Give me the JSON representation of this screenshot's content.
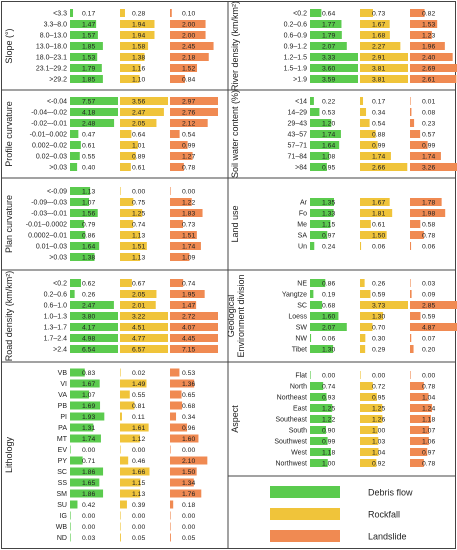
{
  "chart_data": {
    "type": "bar",
    "value_max": 2.7,
    "colors": {
      "debris": "#5bcb4e",
      "rockfall": "#f0c43a",
      "landslide": "#f08a52"
    },
    "legend": [
      {
        "key": "debris",
        "label": "Debris flow"
      },
      {
        "key": "rockfall",
        "label": "Rockfall"
      },
      {
        "key": "landslide",
        "label": "Landslide"
      }
    ],
    "panels": [
      {
        "title": "Slope (°)",
        "rows": [
          {
            "label": "<3.3",
            "values": [
              0.17,
              0.28,
              0.1
            ]
          },
          {
            "label": "3.3–8.0",
            "values": [
              1.47,
              1.94,
              2.0
            ]
          },
          {
            "label": "8.0–13.0",
            "values": [
              1.57,
              1.94,
              2.0
            ]
          },
          {
            "label": "13.0–18.0",
            "values": [
              1.85,
              1.58,
              2.45
            ]
          },
          {
            "label": "18.0–23.1",
            "values": [
              1.53,
              1.38,
              2.18
            ]
          },
          {
            "label": "23.1–29.2",
            "values": [
              1.79,
              1.16,
              1.52
            ]
          },
          {
            "label": ">29.2",
            "values": [
              1.85,
              1.1,
              0.84
            ]
          }
        ]
      },
      {
        "title": "River density (km/km²)",
        "rows": [
          {
            "label": "<0.2",
            "values": [
              0.64,
              0.73,
              0.82
            ]
          },
          {
            "label": "0.2–0.6",
            "values": [
              1.77,
              1.67,
              1.53
            ]
          },
          {
            "label": "0.6–0.9",
            "values": [
              1.79,
              1.68,
              1.23
            ]
          },
          {
            "label": "0.9–1.2",
            "values": [
              2.07,
              2.27,
              1.96
            ]
          },
          {
            "label": "1.2–1.5",
            "values": [
              3.33,
              2.91,
              2.4
            ]
          },
          {
            "label": "1.5–1.9",
            "values": [
              3.6,
              3.81,
              2.69
            ]
          },
          {
            "label": ">1.9",
            "values": [
              3.59,
              3.81,
              2.61
            ]
          }
        ]
      },
      {
        "title": "Profile curvature",
        "rows": [
          {
            "label": "<-0.04",
            "values": [
              7.57,
              3.56,
              2.97
            ]
          },
          {
            "label": "-0.04–-0.02",
            "values": [
              4.18,
              2.47,
              2.76
            ]
          },
          {
            "label": "-0.02–-0.01",
            "values": [
              2.48,
              2.05,
              2.12
            ]
          },
          {
            "label": "-0.01–0.002",
            "values": [
              0.47,
              0.64,
              0.54
            ]
          },
          {
            "label": "0.002–0.02",
            "values": [
              0.61,
              1.01,
              0.99
            ]
          },
          {
            "label": "0.02–0.03",
            "values": [
              0.55,
              0.89,
              1.27
            ]
          },
          {
            "label": ">0.03",
            "values": [
              0.4,
              0.61,
              0.78
            ]
          }
        ]
      },
      {
        "title": "Soil water content (%)",
        "rows": [
          {
            "label": "<14",
            "values": [
              0.22,
              0.17,
              0.01
            ]
          },
          {
            "label": "14–29",
            "values": [
              0.53,
              0.34,
              0.08
            ]
          },
          {
            "label": "29–43",
            "values": [
              1.2,
              0.54,
              0.23
            ]
          },
          {
            "label": "43–57",
            "values": [
              1.74,
              0.88,
              0.57
            ]
          },
          {
            "label": "57–71",
            "values": [
              1.64,
              0.99,
              0.99
            ]
          },
          {
            "label": "71–84",
            "values": [
              1.08,
              1.74,
              1.74
            ]
          },
          {
            "label": ">84",
            "values": [
              0.95,
              2.66,
              3.26
            ]
          }
        ]
      },
      {
        "title": "Plan curvature",
        "rows": [
          {
            "label": "<-0.09",
            "values": [
              1.13,
              0.0,
              0.0
            ]
          },
          {
            "label": "-0.09–-0.03",
            "values": [
              1.07,
              0.75,
              1.22
            ]
          },
          {
            "label": "-0.03–-0.01",
            "values": [
              1.56,
              1.25,
              1.83
            ]
          },
          {
            "label": "-0.01–0.0002",
            "values": [
              0.79,
              0.74,
              0.73
            ]
          },
          {
            "label": "0.0002–0.01",
            "values": [
              0.86,
              1.13,
              1.51
            ]
          },
          {
            "label": "0.01–0.03",
            "values": [
              1.64,
              1.51,
              1.74
            ]
          },
          {
            "label": ">0.03",
            "values": [
              1.38,
              1.13,
              1.09
            ]
          }
        ]
      },
      {
        "title": "Land use",
        "rows": [
          {
            "label": "Ar",
            "values": [
              1.35,
              1.67,
              1.78
            ]
          },
          {
            "label": "Fo",
            "values": [
              1.33,
              1.81,
              1.98
            ]
          },
          {
            "label": "Me",
            "values": [
              1.15,
              0.61,
              0.58
            ]
          },
          {
            "label": "SA",
            "values": [
              0.97,
              1.5,
              0.78
            ]
          },
          {
            "label": "Un",
            "values": [
              0.24,
              0.06,
              0.06
            ]
          }
        ]
      },
      {
        "title": "Road density (km/km²)",
        "rows": [
          {
            "label": "<0.2",
            "values": [
              0.62,
              0.67,
              0.74
            ]
          },
          {
            "label": "0.2–0.6",
            "values": [
              0.26,
              2.05,
              1.95
            ]
          },
          {
            "label": "0.6–1.0",
            "values": [
              2.47,
              2.01,
              1.47
            ]
          },
          {
            "label": "1.0–1.3",
            "values": [
              3.8,
              3.22,
              2.72
            ]
          },
          {
            "label": "1.3–1.7",
            "values": [
              4.17,
              4.51,
              4.07
            ]
          },
          {
            "label": "1.7–2.4",
            "values": [
              4.98,
              4.77,
              4.45
            ]
          },
          {
            "label": ">2.4",
            "values": [
              6.54,
              6.57,
              7.15
            ]
          }
        ]
      },
      {
        "title": "Geological Environment division",
        "rows": [
          {
            "label": "NE",
            "values": [
              0.86,
              0.26,
              0.03
            ]
          },
          {
            "label": "Yangtze",
            "values": [
              0.19,
              0.59,
              0.09
            ]
          },
          {
            "label": "SC",
            "values": [
              0.68,
              3.73,
              2.85
            ]
          },
          {
            "label": "Loess",
            "values": [
              1.6,
              1.3,
              0.59
            ]
          },
          {
            "label": "SW",
            "values": [
              2.07,
              0.7,
              4.87
            ]
          },
          {
            "label": "NW",
            "values": [
              0.06,
              0.3,
              0.07
            ]
          },
          {
            "label": "Tibet",
            "values": [
              1.3,
              0.29,
              0.2
            ]
          }
        ]
      },
      {
        "title": "Lithology",
        "rows": [
          {
            "label": "VB",
            "values": [
              0.83,
              0.02,
              0.53
            ]
          },
          {
            "label": "VI",
            "values": [
              1.67,
              1.49,
              1.36
            ]
          },
          {
            "label": "VA",
            "values": [
              1.07,
              0.55,
              0.65
            ]
          },
          {
            "label": "PB",
            "values": [
              1.69,
              0.81,
              0.68
            ]
          },
          {
            "label": "PI",
            "values": [
              1.93,
              0.11,
              0.34
            ]
          },
          {
            "label": "PA",
            "values": [
              1.31,
              1.61,
              0.96
            ]
          },
          {
            "label": "MT",
            "values": [
              1.74,
              1.12,
              1.6
            ]
          },
          {
            "label": "EV",
            "values": [
              0.0,
              0.0,
              0.0
            ]
          },
          {
            "label": "PY",
            "values": [
              0.71,
              0.46,
              2.1
            ]
          },
          {
            "label": "SC",
            "values": [
              1.86,
              1.66,
              1.5
            ]
          },
          {
            "label": "SS",
            "values": [
              1.65,
              1.15,
              1.34
            ]
          },
          {
            "label": "SM",
            "values": [
              1.86,
              1.13,
              1.76
            ]
          },
          {
            "label": "SU",
            "values": [
              0.42,
              0.39,
              0.18
            ]
          },
          {
            "label": "IG",
            "values": [
              0.0,
              0.0,
              0.0
            ]
          },
          {
            "label": "WB",
            "values": [
              0.0,
              0.0,
              0.0
            ]
          },
          {
            "label": "ND",
            "values": [
              0.03,
              0.05,
              0.05
            ]
          }
        ]
      },
      {
        "title": "Aspect",
        "rows": [
          {
            "label": "Flat",
            "values": [
              0.0,
              0.0,
              0.0
            ]
          },
          {
            "label": "North",
            "values": [
              0.74,
              0.72,
              0.78
            ]
          },
          {
            "label": "Northeast",
            "values": [
              0.93,
              0.95,
              1.04
            ]
          },
          {
            "label": "East",
            "values": [
              1.25,
              1.25,
              1.24
            ]
          },
          {
            "label": "Southeast",
            "values": [
              1.22,
              1.26,
              1.18
            ]
          },
          {
            "label": "South",
            "values": [
              0.9,
              1.0,
              1.07
            ]
          },
          {
            "label": "Southwest",
            "values": [
              0.99,
              1.03,
              1.06
            ]
          },
          {
            "label": "West",
            "values": [
              1.18,
              1.04,
              0.97
            ]
          },
          {
            "label": "Northwest",
            "values": [
              1.0,
              0.92,
              0.78
            ]
          }
        ]
      }
    ]
  }
}
